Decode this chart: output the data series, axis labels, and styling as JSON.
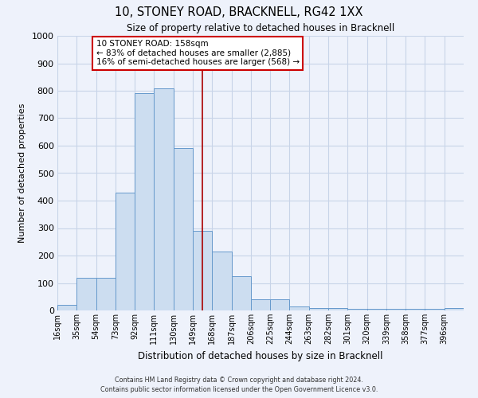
{
  "title": "10, STONEY ROAD, BRACKNELL, RG42 1XX",
  "subtitle": "Size of property relative to detached houses in Bracknell",
  "xlabel": "Distribution of detached houses by size in Bracknell",
  "ylabel": "Number of detached properties",
  "bin_edges": [
    16,
    35,
    54,
    73,
    92,
    111,
    130,
    149,
    168,
    187,
    206,
    225,
    244,
    263,
    282,
    301,
    320,
    339,
    358,
    377,
    396,
    415
  ],
  "bar_heights": [
    20,
    120,
    120,
    430,
    790,
    810,
    590,
    290,
    215,
    125,
    40,
    40,
    15,
    10,
    8,
    5,
    5,
    5,
    5,
    5,
    8
  ],
  "bar_color": "#ccddf0",
  "bar_edge_color": "#6699cc",
  "bar_edge_width": 0.7,
  "grid_color": "#c8d4e8",
  "background_color": "#eef2fb",
  "vline_x": 158,
  "vline_color": "#aa0000",
  "annotation_box_text": "10 STONEY ROAD: 158sqm\n← 83% of detached houses are smaller (2,885)\n16% of semi-detached houses are larger (568) →",
  "annotation_box_color": "white",
  "annotation_box_edge_color": "#cc0000",
  "ylim": [
    0,
    1000
  ],
  "yticks": [
    0,
    100,
    200,
    300,
    400,
    500,
    600,
    700,
    800,
    900,
    1000
  ],
  "tick_labels": [
    "16sqm",
    "35sqm",
    "54sqm",
    "73sqm",
    "92sqm",
    "111sqm",
    "130sqm",
    "149sqm",
    "168sqm",
    "187sqm",
    "206sqm",
    "225sqm",
    "244sqm",
    "263sqm",
    "282sqm",
    "301sqm",
    "320sqm",
    "339sqm",
    "358sqm",
    "377sqm",
    "396sqm"
  ],
  "footer_line1": "Contains HM Land Registry data © Crown copyright and database right 2024.",
  "footer_line2": "Contains public sector information licensed under the Open Government Licence v3.0."
}
